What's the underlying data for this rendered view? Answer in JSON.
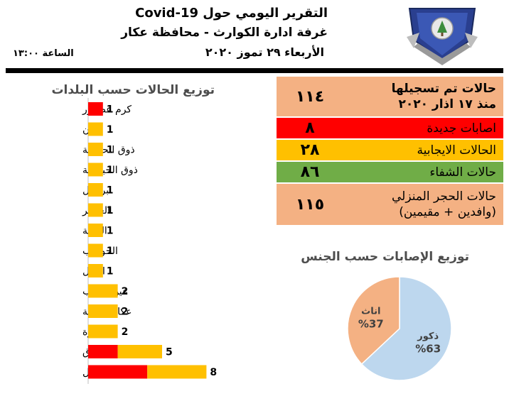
{
  "header": {
    "title": "التقرير اليومي حول Covid-19",
    "subtitle": "غرفة ادارة الكوارث - محافظة عكار",
    "date": "الأربعاء ٢٩ تموز ٢٠٢٠",
    "time": "الساعة ١٣:٠٠"
  },
  "colors": {
    "red": "#ff0000",
    "orange": "#ffc000",
    "green": "#70ad47",
    "salmon": "#f4b183",
    "pieBlue": "#bdd7ee"
  },
  "stats": [
    {
      "label1": "حالات تم تسجيلها",
      "label2": "منذ ١٧ اذار ٢٠٢٠",
      "value": "١١٤",
      "color": "#f4b183",
      "bold": true
    },
    {
      "label1": "اصابات جديدة",
      "label2": "",
      "value": "٨",
      "color": "#ff0000",
      "bold": false
    },
    {
      "label1": "الحالات الايجابية",
      "label2": "",
      "value": "٢٨",
      "color": "#ffc000",
      "bold": false
    },
    {
      "label1": "حالات الشفاء",
      "label2": "",
      "value": "٨٦",
      "color": "#70ad47",
      "bold": false
    },
    {
      "label1": "حالات الحجر المنزلي",
      "label2": "(وافدين + مقيمين)",
      "value": "١١٥",
      "color": "#f4b183",
      "bold": false
    }
  ],
  "chart_data": [
    {
      "type": "bar",
      "orientation": "horizontal",
      "stacked": true,
      "title": "توزيع الحالات حسب البلدات",
      "categories": [
        "كرم عصفور",
        "شان",
        "ذوق الحصنية",
        "ذوق الحبالصة",
        "برقايل",
        "العماير",
        "الرامة",
        "الحوشب",
        "التليل",
        "عين الذهب",
        "عكار العتيقة",
        "المحمرة",
        "فنيدق",
        "خط البترول"
      ],
      "series": [
        {
          "color": "#ff0000",
          "values": [
            1,
            0,
            0,
            0,
            0,
            0,
            0,
            0,
            0,
            0,
            0,
            0,
            2,
            4
          ]
        },
        {
          "color": "#ffc000",
          "values": [
            0,
            1,
            1,
            1,
            1,
            1,
            1,
            1,
            1,
            2,
            2,
            2,
            3,
            4
          ]
        }
      ],
      "totals": [
        1,
        1,
        1,
        1,
        1,
        1,
        1,
        1,
        1,
        2,
        2,
        2,
        5,
        8
      ],
      "xlim": [
        0,
        8
      ]
    },
    {
      "type": "pie",
      "title": "توزيع الإصابات حسب الجنس",
      "slices": [
        {
          "label": "ذكور",
          "value": 63,
          "pct": "%63",
          "color": "#bdd7ee"
        },
        {
          "label": "اناث",
          "value": 37,
          "pct": "%37",
          "color": "#f4b183"
        }
      ]
    }
  ]
}
